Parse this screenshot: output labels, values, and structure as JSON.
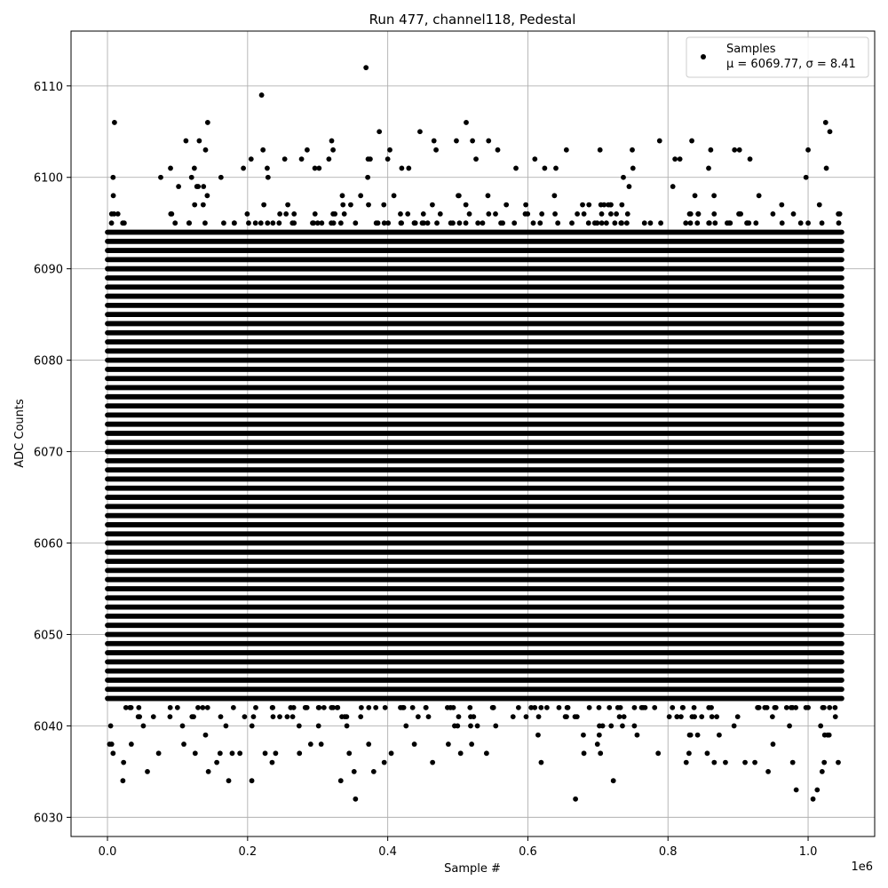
{
  "chart_data": {
    "type": "scatter",
    "title": "Run 477, channel118, Pedestal",
    "xlabel": "Sample #",
    "ylabel": "ADC Counts",
    "x_offset_label": "1e6",
    "xlim": [
      -0.052,
      1.095
    ],
    "ylim": [
      6027.9,
      6116.0
    ],
    "x_ticks": [
      0.0,
      0.2,
      0.4,
      0.6,
      0.8,
      1.0
    ],
    "x_tick_labels": [
      "0.0",
      "0.2",
      "0.4",
      "0.6",
      "0.8",
      "1.0"
    ],
    "y_ticks": [
      6030,
      6040,
      6050,
      6060,
      6070,
      6080,
      6090,
      6100,
      6110
    ],
    "y_tick_labels": [
      "6030",
      "6040",
      "6050",
      "6060",
      "6070",
      "6080",
      "6090",
      "6100",
      "6110"
    ],
    "grid": true,
    "legend_position": "top-right",
    "marker_color": "#000000",
    "series": [
      {
        "name": "Samples",
        "stats_label": "μ = 6069.77, σ = 8.41",
        "sample_count": 1048576,
        "mean": 6069.77,
        "sigma": 8.41,
        "dense_range": [
          6043,
          6094
        ],
        "band_x_range": [
          0.0,
          1.048
        ],
        "outliers": [
          {
            "x": 0.003,
            "y": 6038
          },
          {
            "x": 0.006,
            "y": 6038
          },
          {
            "x": 0.008,
            "y": 6037
          },
          {
            "x": 0.01,
            "y": 6106
          },
          {
            "x": 0.008,
            "y": 6100
          },
          {
            "x": 0.022,
            "y": 6034
          },
          {
            "x": 0.023,
            "y": 6036
          },
          {
            "x": 0.057,
            "y": 6035
          },
          {
            "x": 0.073,
            "y": 6037
          },
          {
            "x": 0.076,
            "y": 6100
          },
          {
            "x": 0.09,
            "y": 6101
          },
          {
            "x": 0.109,
            "y": 6038
          },
          {
            "x": 0.112,
            "y": 6104
          },
          {
            "x": 0.12,
            "y": 6100
          },
          {
            "x": 0.124,
            "y": 6101
          },
          {
            "x": 0.131,
            "y": 6104
          },
          {
            "x": 0.14,
            "y": 6103
          },
          {
            "x": 0.143,
            "y": 6106
          },
          {
            "x": 0.144,
            "y": 6035
          },
          {
            "x": 0.156,
            "y": 6036
          },
          {
            "x": 0.162,
            "y": 6100
          },
          {
            "x": 0.173,
            "y": 6034
          },
          {
            "x": 0.178,
            "y": 6037
          },
          {
            "x": 0.189,
            "y": 6037
          },
          {
            "x": 0.194,
            "y": 6101
          },
          {
            "x": 0.205,
            "y": 6102
          },
          {
            "x": 0.206,
            "y": 6034
          },
          {
            "x": 0.22,
            "y": 6109
          },
          {
            "x": 0.222,
            "y": 6103
          },
          {
            "x": 0.225,
            "y": 6037
          },
          {
            "x": 0.228,
            "y": 6101
          },
          {
            "x": 0.235,
            "y": 6036
          },
          {
            "x": 0.24,
            "y": 6037
          },
          {
            "x": 0.253,
            "y": 6102
          },
          {
            "x": 0.274,
            "y": 6037
          },
          {
            "x": 0.277,
            "y": 6102
          },
          {
            "x": 0.285,
            "y": 6103
          },
          {
            "x": 0.29,
            "y": 6038
          },
          {
            "x": 0.296,
            "y": 6101
          },
          {
            "x": 0.302,
            "y": 6101
          },
          {
            "x": 0.305,
            "y": 6038
          },
          {
            "x": 0.316,
            "y": 6102
          },
          {
            "x": 0.32,
            "y": 6104
          },
          {
            "x": 0.322,
            "y": 6103
          },
          {
            "x": 0.333,
            "y": 6034
          },
          {
            "x": 0.345,
            "y": 6037
          },
          {
            "x": 0.352,
            "y": 6035
          },
          {
            "x": 0.354,
            "y": 6032
          },
          {
            "x": 0.369,
            "y": 6112
          },
          {
            "x": 0.372,
            "y": 6102
          },
          {
            "x": 0.375,
            "y": 6102
          },
          {
            "x": 0.38,
            "y": 6035
          },
          {
            "x": 0.388,
            "y": 6105
          },
          {
            "x": 0.395,
            "y": 6036
          },
          {
            "x": 0.4,
            "y": 6102
          },
          {
            "x": 0.403,
            "y": 6103
          },
          {
            "x": 0.405,
            "y": 6037
          },
          {
            "x": 0.42,
            "y": 6101
          },
          {
            "x": 0.43,
            "y": 6101
          },
          {
            "x": 0.438,
            "y": 6038
          },
          {
            "x": 0.446,
            "y": 6105
          },
          {
            "x": 0.464,
            "y": 6036
          },
          {
            "x": 0.466,
            "y": 6104
          },
          {
            "x": 0.469,
            "y": 6103
          },
          {
            "x": 0.498,
            "y": 6104
          },
          {
            "x": 0.504,
            "y": 6037
          },
          {
            "x": 0.512,
            "y": 6106
          },
          {
            "x": 0.521,
            "y": 6104
          },
          {
            "x": 0.526,
            "y": 6102
          },
          {
            "x": 0.541,
            "y": 6037
          },
          {
            "x": 0.544,
            "y": 6104
          },
          {
            "x": 0.557,
            "y": 6103
          },
          {
            "x": 0.583,
            "y": 6101
          },
          {
            "x": 0.61,
            "y": 6102
          },
          {
            "x": 0.619,
            "y": 6036
          },
          {
            "x": 0.624,
            "y": 6101
          },
          {
            "x": 0.64,
            "y": 6101
          },
          {
            "x": 0.655,
            "y": 6103
          },
          {
            "x": 0.668,
            "y": 6032
          },
          {
            "x": 0.68,
            "y": 6037
          },
          {
            "x": 0.703,
            "y": 6103
          },
          {
            "x": 0.722,
            "y": 6034
          },
          {
            "x": 0.749,
            "y": 6103
          },
          {
            "x": 0.75,
            "y": 6101
          },
          {
            "x": 0.786,
            "y": 6037
          },
          {
            "x": 0.788,
            "y": 6104
          },
          {
            "x": 0.81,
            "y": 6102
          },
          {
            "x": 0.817,
            "y": 6102
          },
          {
            "x": 0.826,
            "y": 6036
          },
          {
            "x": 0.83,
            "y": 6037
          },
          {
            "x": 0.834,
            "y": 6104
          },
          {
            "x": 0.856,
            "y": 6037
          },
          {
            "x": 0.858,
            "y": 6101
          },
          {
            "x": 0.861,
            "y": 6103
          },
          {
            "x": 0.866,
            "y": 6036
          },
          {
            "x": 0.882,
            "y": 6036
          },
          {
            "x": 0.895,
            "y": 6103
          },
          {
            "x": 0.902,
            "y": 6103
          },
          {
            "x": 0.91,
            "y": 6036
          },
          {
            "x": 0.917,
            "y": 6102
          },
          {
            "x": 0.924,
            "y": 6036
          },
          {
            "x": 0.943,
            "y": 6035
          },
          {
            "x": 0.978,
            "y": 6036
          },
          {
            "x": 0.983,
            "y": 6033
          },
          {
            "x": 0.997,
            "y": 6100
          },
          {
            "x": 1.0,
            "y": 6103
          },
          {
            "x": 1.007,
            "y": 6032
          },
          {
            "x": 1.013,
            "y": 6033
          },
          {
            "x": 1.02,
            "y": 6035
          },
          {
            "x": 1.023,
            "y": 6036
          },
          {
            "x": 1.025,
            "y": 6106
          },
          {
            "x": 1.026,
            "y": 6101
          },
          {
            "x": 1.031,
            "y": 6105
          },
          {
            "x": 1.043,
            "y": 6036
          }
        ]
      }
    ]
  }
}
